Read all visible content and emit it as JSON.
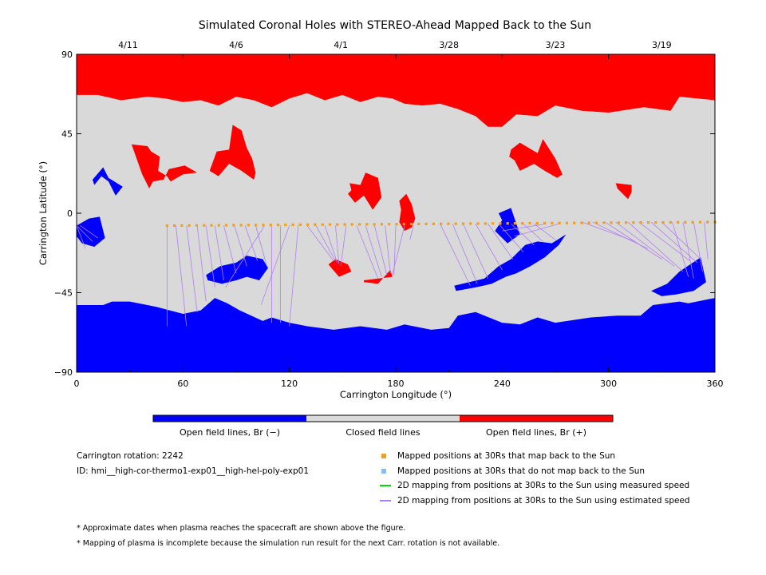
{
  "chart_data": {
    "type": "heatmap",
    "title": "Simulated Coronal Holes with STEREO-Ahead Mapped Back to the Sun",
    "xlabel": "Carrington Longitude (°)",
    "ylabel": "Carrington Latitude (°)",
    "xlim": [
      0,
      360
    ],
    "ylim": [
      -90,
      90
    ],
    "x_ticks": [
      0,
      60,
      120,
      180,
      240,
      300,
      360
    ],
    "y_ticks": [
      90,
      45,
      0,
      -45,
      -90
    ],
    "x_tick_labels": [
      "0",
      "60",
      "120",
      "180",
      "240",
      "300",
      "360"
    ],
    "y_tick_labels": [
      "90",
      "45",
      "0",
      "−45",
      "−90"
    ],
    "top_axis_dates": [
      {
        "label": "4/11",
        "lon": 29
      },
      {
        "label": "4/6",
        "lon": 90
      },
      {
        "label": "4/1",
        "lon": 149
      },
      {
        "label": "3/28",
        "lon": 210
      },
      {
        "label": "3/23",
        "lon": 270
      },
      {
        "label": "3/19",
        "lon": 330
      }
    ],
    "colorbar": [
      {
        "label": "Open field lines, Br (−)",
        "color": "#0000ff"
      },
      {
        "label": "Closed field lines",
        "color": "#d9d9d9"
      },
      {
        "label": "Open field lines, Br (+)",
        "color": "#ff0000"
      }
    ],
    "mapped_points": {
      "lon_start": 51,
      "lon_end": 360,
      "count": 75,
      "lat_start": -7,
      "lat_end": -5,
      "color": "#f0a020"
    },
    "mapping_line_color": "#b080f0",
    "coronal_holes_positive": [
      {
        "lon": [
          0,
          360,
          360,
          340,
          335,
          320,
          300,
          285,
          270,
          260,
          248,
          240,
          232,
          225,
          215,
          205,
          195,
          185,
          178,
          170,
          160,
          150,
          140,
          130,
          120,
          110,
          100,
          90,
          80,
          70,
          60,
          50,
          40,
          25,
          12,
          0
        ],
        "lat": [
          90,
          90,
          64,
          66,
          58,
          60,
          57,
          58,
          61,
          55,
          56,
          49,
          49,
          55,
          59,
          62,
          61,
          62,
          65,
          66,
          63,
          67,
          64,
          68,
          65,
          60,
          64,
          66,
          61,
          64,
          63,
          65,
          66,
          64,
          67,
          67
        ]
      },
      {
        "lon": [
          31,
          40,
          42,
          47,
          46,
          51,
          53,
          60,
          68,
          61,
          52,
          49,
          43,
          41,
          37
        ],
        "lat": [
          39,
          38,
          35,
          32,
          24,
          21,
          18,
          22,
          23,
          27,
          25,
          19,
          18,
          14,
          22
        ]
      },
      {
        "lon": [
          79,
          86,
          88,
          93,
          96,
          99,
          101,
          100,
          93,
          86,
          80,
          75
        ],
        "lat": [
          35,
          36,
          50,
          47,
          37,
          31,
          23,
          19,
          24,
          28,
          21,
          24
        ]
      },
      {
        "lon": [
          154,
          160,
          163,
          170,
          172,
          167,
          162,
          157,
          153,
          155
        ],
        "lat": [
          17,
          16,
          23,
          20,
          9,
          2,
          10,
          6,
          11,
          13
        ]
      },
      {
        "lon": [
          182,
          186,
          189,
          191,
          189,
          185,
          182,
          183
        ],
        "lat": [
          7,
          11,
          5,
          -3,
          -8,
          -10,
          -5,
          2
        ]
      },
      {
        "lon": [
          146,
          153,
          155,
          148,
          142
        ],
        "lat": [
          -26,
          -29,
          -33,
          -36,
          -29
        ]
      },
      {
        "lon": [
          162,
          178,
          177,
          170,
          162
        ],
        "lat": [
          -38,
          -36,
          -32,
          -40,
          -39
        ]
      },
      {
        "lon": [
          245,
          250,
          260,
          263,
          270,
          274,
          271,
          264,
          258,
          250,
          247,
          244
        ],
        "lat": [
          36,
          40,
          34,
          42,
          31,
          22,
          20,
          24,
          28,
          24,
          30,
          32
        ]
      },
      {
        "lon": [
          304,
          313,
          313,
          311,
          305
        ],
        "lat": [
          17,
          16,
          12,
          8,
          14
        ]
      }
    ],
    "coronal_holes_negative": [
      {
        "lon": [
          0,
          360,
          360,
          345,
          340,
          325,
          318,
          305,
          290,
          270,
          260,
          250,
          240,
          225,
          215,
          210,
          200,
          185,
          175,
          160,
          145,
          130,
          120,
          110,
          105,
          92,
          85,
          78,
          70,
          60,
          45,
          30,
          20,
          15,
          0
        ],
        "lat": [
          -90,
          -90,
          -48,
          -51,
          -50,
          -52,
          -58,
          -58,
          -59,
          -62,
          -59,
          -63,
          -62,
          -56,
          -58,
          -65,
          -66,
          -63,
          -66,
          -64,
          -66,
          -64,
          -62,
          -59,
          -61,
          -55,
          -51,
          -48,
          -55,
          -57,
          -53,
          -50,
          -50,
          -52,
          -52
        ]
      },
      {
        "lon": [
          9,
          15,
          18,
          26,
          22,
          18,
          14,
          10
        ],
        "lat": [
          19,
          26,
          20,
          15,
          10,
          18,
          21,
          16
        ]
      },
      {
        "lon": [
          0,
          7,
          13,
          16,
          10,
          3,
          0
        ],
        "lat": [
          -7,
          -3,
          -2,
          -14,
          -19,
          -17,
          -13
        ]
      },
      {
        "lon": [
          73,
          81,
          90,
          96,
          105,
          108,
          103,
          96,
          90,
          82,
          74
        ],
        "lat": [
          -35,
          -30,
          -28,
          -24,
          -26,
          -31,
          -38,
          -36,
          -38,
          -40,
          -38
        ]
      },
      {
        "lon": [
          213,
          230,
          238,
          245,
          253,
          260,
          268,
          276,
          272,
          264,
          256,
          248,
          242,
          234,
          225,
          214
        ],
        "lat": [
          -41,
          -37,
          -30,
          -26,
          -18,
          -16,
          -17,
          -12,
          -18,
          -25,
          -30,
          -34,
          -36,
          -40,
          -42,
          -44
        ]
      },
      {
        "lon": [
          238,
          245,
          250,
          243,
          236,
          240
        ],
        "lat": [
          0,
          3,
          -12,
          -17,
          -10,
          -4
        ]
      },
      {
        "lon": [
          324,
          333,
          340,
          346,
          352,
          355,
          348,
          338,
          330
        ],
        "lat": [
          -44,
          -40,
          -33,
          -29,
          -25,
          -39,
          -44,
          -46,
          -47
        ]
      }
    ],
    "mapping_lines": [
      [
        [
          51,
          -7
        ],
        [
          51,
          -64
        ]
      ],
      [
        [
          56,
          -7
        ],
        [
          62,
          -64
        ]
      ],
      [
        [
          62,
          -7
        ],
        [
          68,
          -56
        ]
      ],
      [
        [
          68,
          -7
        ],
        [
          73,
          -50
        ]
      ],
      [
        [
          73,
          -7
        ],
        [
          78,
          -42
        ]
      ],
      [
        [
          78,
          -7
        ],
        [
          83,
          -38
        ]
      ],
      [
        [
          83,
          -7
        ],
        [
          90,
          -34
        ]
      ],
      [
        [
          89,
          -7
        ],
        [
          96,
          -30
        ]
      ],
      [
        [
          95,
          -7
        ],
        [
          102,
          -27
        ]
      ],
      [
        [
          101,
          -7
        ],
        [
          107,
          -29
        ]
      ],
      [
        [
          106,
          -7
        ],
        [
          84,
          -42
        ]
      ],
      [
        [
          110,
          -7
        ],
        [
          110,
          -62
        ]
      ],
      [
        [
          115,
          -7
        ],
        [
          115,
          -62
        ]
      ],
      [
        [
          120,
          -7
        ],
        [
          104,
          -52
        ]
      ],
      [
        [
          125,
          -7
        ],
        [
          120,
          -64
        ]
      ],
      [
        [
          130,
          -7
        ],
        [
          145,
          -27
        ]
      ],
      [
        [
          135,
          -7
        ],
        [
          146,
          -27
        ]
      ],
      [
        [
          140,
          -7
        ],
        [
          147,
          -28
        ]
      ],
      [
        [
          146,
          -7
        ],
        [
          148,
          -29
        ]
      ],
      [
        [
          152,
          -7
        ],
        [
          149,
          -30
        ]
      ],
      [
        [
          158,
          -7
        ],
        [
          170,
          -37
        ]
      ],
      [
        [
          163,
          -7
        ],
        [
          172,
          -36
        ]
      ],
      [
        [
          168,
          -7
        ],
        [
          175,
          -35
        ]
      ],
      [
        [
          174,
          -7
        ],
        [
          177,
          -34
        ]
      ],
      [
        [
          180,
          -7
        ],
        [
          179,
          -35
        ]
      ],
      [
        [
          185,
          -7
        ],
        [
          178,
          -35
        ]
      ],
      [
        [
          190,
          -7
        ],
        [
          188,
          -15
        ]
      ],
      [
        [
          205,
          -6
        ],
        [
          222,
          -41
        ]
      ],
      [
        [
          212,
          -6
        ],
        [
          226,
          -40
        ]
      ],
      [
        [
          218,
          -6
        ],
        [
          232,
          -37
        ]
      ],
      [
        [
          225,
          -6
        ],
        [
          240,
          -32
        ]
      ],
      [
        [
          232,
          -6
        ],
        [
          246,
          -26
        ]
      ],
      [
        [
          238,
          -6
        ],
        [
          252,
          -22
        ]
      ],
      [
        [
          245,
          -6
        ],
        [
          258,
          -18
        ]
      ],
      [
        [
          252,
          -6
        ],
        [
          263,
          -16
        ]
      ],
      [
        [
          258,
          -6
        ],
        [
          270,
          -15
        ]
      ],
      [
        [
          265,
          -6
        ],
        [
          240,
          -10
        ]
      ],
      [
        [
          272,
          -6
        ],
        [
          247,
          -13
        ]
      ],
      [
        [
          285,
          -5
        ],
        [
          315,
          -16
        ]
      ],
      [
        [
          291,
          -5
        ],
        [
          322,
          -20
        ]
      ],
      [
        [
          298,
          -5
        ],
        [
          330,
          -26
        ]
      ],
      [
        [
          304,
          -5
        ],
        [
          337,
          -30
        ]
      ],
      [
        [
          311,
          -5
        ],
        [
          342,
          -33
        ]
      ],
      [
        [
          317,
          -5
        ],
        [
          346,
          -27
        ]
      ],
      [
        [
          324,
          -5
        ],
        [
          350,
          -28
        ]
      ],
      [
        [
          330,
          -5
        ],
        [
          352,
          -26
        ]
      ],
      [
        [
          336,
          -5
        ],
        [
          345,
          -36
        ]
      ],
      [
        [
          342,
          -5
        ],
        [
          348,
          -37
        ]
      ],
      [
        [
          348,
          -5
        ],
        [
          353,
          -33
        ]
      ],
      [
        [
          354,
          -5
        ],
        [
          356,
          -26
        ]
      ],
      [
        [
          0,
          -7
        ],
        [
          9,
          -16
        ]
      ],
      [
        [
          0,
          -7
        ],
        [
          5,
          -20
        ]
      ],
      [
        [
          2,
          -7
        ],
        [
          12,
          -14
        ]
      ]
    ]
  },
  "info": {
    "carrington_rotation": "Carrington rotation: 2242",
    "id": "ID: hmi__high-cor-thermo1-exp01__high-hel-poly-exp01"
  },
  "legend": {
    "items": [
      {
        "label": "Mapped positions at 30Rs that map back to the Sun",
        "color": "#f0a020",
        "marker": "square"
      },
      {
        "label": "Mapped positions at 30Rs that do not map back to the Sun",
        "color": "#80c0ff",
        "marker": "square"
      },
      {
        "label": "2D mapping from positions at 30Rs to the Sun using measured speed",
        "color": "#00dd00",
        "marker": "line"
      },
      {
        "label": "2D mapping from positions at 30Rs to the Sun using estimated speed",
        "color": "#b080f0",
        "marker": "line"
      }
    ]
  },
  "footnotes": [
    "* Approximate dates when plasma reaches the spacecraft are shown above the figure.",
    "* Mapping of plasma is incomplete because the simulation run result for the next Carr. rotation is not available."
  ]
}
